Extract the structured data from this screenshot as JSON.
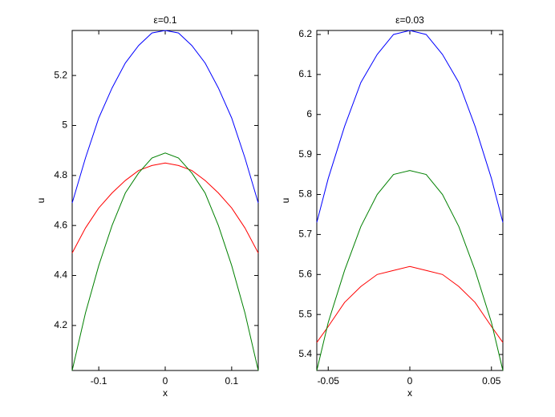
{
  "chart_data": [
    {
      "type": "line",
      "title": "ε=0.1",
      "x_label": "x",
      "y_label": "u",
      "x": [
        -0.14,
        -0.12,
        -0.1,
        -0.08,
        -0.06,
        -0.04,
        -0.02,
        0,
        0.02,
        0.04,
        0.06,
        0.08,
        0.1,
        0.12,
        0.14
      ],
      "series": [
        {
          "color": "#0000ff",
          "values": [
            4.69,
            4.87,
            5.03,
            5.15,
            5.25,
            5.32,
            5.37,
            5.38,
            5.37,
            5.32,
            5.25,
            5.15,
            5.03,
            4.87,
            4.69
          ]
        },
        {
          "color": "#ff0000",
          "values": [
            4.49,
            4.59,
            4.67,
            4.73,
            4.78,
            4.82,
            4.84,
            4.85,
            4.84,
            4.82,
            4.78,
            4.73,
            4.67,
            4.59,
            4.49
          ]
        },
        {
          "color": "#008000",
          "values": [
            4.02,
            4.25,
            4.44,
            4.6,
            4.73,
            4.81,
            4.87,
            4.89,
            4.87,
            4.81,
            4.73,
            4.6,
            4.44,
            4.25,
            4.02
          ]
        }
      ],
      "xlim": [
        -0.14,
        0.14
      ],
      "xticks": [
        -0.1,
        0,
        0.1
      ],
      "ylim": [
        4.02,
        5.38
      ],
      "yticks": [
        4.2,
        4.4,
        4.6,
        4.8,
        5,
        5.2
      ]
    },
    {
      "type": "line",
      "title": "ε=0.03",
      "x_label": "x",
      "y_label": "u",
      "x": [
        -0.057,
        -0.05,
        -0.04,
        -0.03,
        -0.02,
        -0.01,
        0,
        0.01,
        0.02,
        0.03,
        0.04,
        0.05,
        0.057
      ],
      "series": [
        {
          "color": "#0000ff",
          "values": [
            5.73,
            5.84,
            5.97,
            6.08,
            6.15,
            6.2,
            6.21,
            6.2,
            6.15,
            6.08,
            5.97,
            5.84,
            5.73
          ]
        },
        {
          "color": "#ff0000",
          "values": [
            5.43,
            5.47,
            5.53,
            5.57,
            5.6,
            5.61,
            5.62,
            5.61,
            5.6,
            5.57,
            5.53,
            5.47,
            5.43
          ]
        },
        {
          "color": "#008000",
          "values": [
            5.36,
            5.48,
            5.61,
            5.72,
            5.8,
            5.85,
            5.86,
            5.85,
            5.8,
            5.72,
            5.61,
            5.48,
            5.36
          ]
        }
      ],
      "xlim": [
        -0.057,
        0.057
      ],
      "xticks": [
        -0.05,
        0,
        0.05
      ],
      "ylim": [
        5.36,
        6.21
      ],
      "yticks": [
        5.4,
        5.5,
        5.6,
        5.7,
        5.8,
        5.9,
        6,
        6.1,
        6.2
      ]
    }
  ]
}
